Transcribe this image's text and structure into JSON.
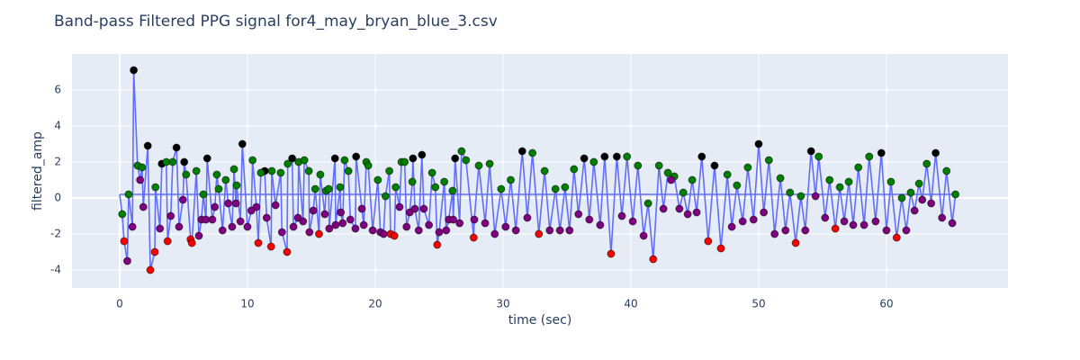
{
  "chart_data": {
    "type": "line",
    "title": "Band-pass Filtered PPG signal for4_may_bryan_blue_3.csv",
    "xlabel": "time (sec)",
    "ylabel": "filtered_amp",
    "xlim": [
      -3.73,
      69.51
    ],
    "ylim": [
      -5,
      8
    ],
    "xticks": [
      0,
      10,
      20,
      30,
      40,
      50,
      60
    ],
    "yticks": [
      -4,
      -2,
      0,
      2,
      4,
      6
    ],
    "grid": true,
    "series": [
      {
        "mode": "lines",
        "color": "#636efa",
        "x": [
          0,
          0.2,
          0.35,
          0.6,
          0.7,
          1.0,
          1.1,
          1.4,
          1.6,
          1.75,
          1.85,
          2.2,
          2.4,
          2.75,
          2.8,
          3.15,
          3.3,
          3.65,
          3.75,
          4.0,
          4.15,
          4.45,
          4.65,
          4.95,
          5.05,
          5.2,
          5.55,
          5.65,
          6.0,
          6.2,
          6.4,
          6.55,
          6.75,
          6.85,
          7.25,
          7.45,
          7.6,
          7.75,
          8.05,
          8.3,
          8.5,
          8.8,
          8.95,
          9.1,
          9.15,
          9.45,
          9.6,
          10.0,
          10.3,
          10.4,
          10.7,
          10.85,
          11.05,
          11.35,
          11.5,
          11.85,
          11.9,
          12.2,
          12.6,
          12.7,
          13.1,
          13.15,
          13.5,
          13.6,
          13.95,
          14.0,
          14.35,
          14.45,
          14.8,
          14.85,
          15.15,
          15.3,
          15.6,
          15.7,
          16.05,
          16.15,
          16.35,
          16.4,
          16.85,
          16.9,
          17.25,
          17.3,
          17.45,
          17.6,
          17.9,
          18.05,
          18.45,
          18.5,
          18.95,
          19.1,
          19.3,
          19.45,
          19.8,
          20.2,
          20.4,
          20.65,
          20.8,
          21.1,
          21.2,
          21.5,
          21.6,
          21.9,
          22.05,
          22.3,
          22.45,
          22.7,
          22.9,
          22.95,
          23.1,
          23.4,
          23.65,
          23.8,
          24.2,
          24.45,
          24.7,
          24.85,
          25.0,
          25.4,
          25.55,
          25.75,
          26.05,
          26.1,
          26.25,
          26.6,
          26.75,
          27.1,
          27.7,
          27.75,
          28.1,
          28.6,
          28.95,
          29.35,
          29.85,
          30.2,
          30.6,
          31.0,
          31.5,
          31.9,
          32.3,
          32.8,
          33.25,
          33.65,
          34.1,
          34.45,
          34.85,
          35.2,
          35.55,
          35.9,
          36.35,
          36.75,
          37.1,
          37.6,
          37.95,
          38.45,
          38.9,
          39.3,
          39.7,
          40.15,
          40.55,
          41.0,
          41.35,
          41.75,
          42.2,
          42.55,
          42.9,
          43.15,
          43.4,
          43.8,
          44.1,
          44.45,
          44.8,
          45.15,
          45.55,
          46.05,
          46.55,
          47.05,
          47.55,
          47.9,
          48.3,
          48.75,
          49.15,
          49.6,
          50.0,
          50.4,
          50.8,
          51.25,
          51.7,
          52.1,
          52.45,
          52.9,
          53.3,
          53.65,
          54.1,
          54.45,
          54.7,
          55.2,
          55.55,
          56.0,
          56.35,
          56.7,
          57.05,
          57.4,
          57.8,
          58.25,
          58.65,
          59.15,
          59.6,
          60.0,
          60.35,
          60.8,
          61.2,
          61.55,
          61.9,
          62.2,
          62.55,
          62.8,
          63.15,
          63.5,
          63.85,
          64.35,
          64.7,
          65.15,
          65.4,
          0
        ],
        "values": [
          0.2,
          -0.9,
          -2.4,
          -3.5,
          0.2,
          -1.6,
          7.1,
          1.8,
          1.0,
          1.7,
          -0.5,
          2.9,
          -4.0,
          -3.0,
          0.6,
          -1.7,
          1.9,
          2.0,
          -2.4,
          -1.0,
          2.0,
          2.8,
          -1.6,
          -0.1,
          2.0,
          1.3,
          -2.3,
          -2.5,
          1.5,
          -2.1,
          -1.2,
          0.2,
          -1.2,
          2.2,
          -1.2,
          -0.5,
          1.3,
          0.5,
          -1.8,
          1.0,
          -0.3,
          -1.6,
          1.6,
          -0.3,
          0.7,
          -1.3,
          3.0,
          -1.6,
          -0.7,
          2.1,
          -0.5,
          -2.5,
          1.4,
          1.5,
          -1.1,
          -2.7,
          1.5,
          -0.4,
          1.4,
          -1.9,
          -3.0,
          1.9,
          2.2,
          -1.6,
          -1.1,
          2.0,
          -1.3,
          2.1,
          1.5,
          -1.9,
          -0.7,
          0.5,
          -2.0,
          1.3,
          -0.9,
          0.4,
          0.5,
          -1.7,
          2.2,
          -1.5,
          0.6,
          -0.8,
          -1.4,
          2.1,
          1.5,
          -1.2,
          -1.7,
          2.3,
          -0.6,
          -1.5,
          2.0,
          1.8,
          -1.8,
          1.0,
          -1.9,
          -2.0,
          0.1,
          1.5,
          -2.0,
          -2.1,
          0.6,
          -0.5,
          2.0,
          2.0,
          -1.6,
          -0.8,
          0.9,
          2.2,
          -0.6,
          -1.8,
          2.4,
          -0.6,
          -1.5,
          1.4,
          0.6,
          -2.6,
          -1.9,
          0.9,
          -1.8,
          -1.2,
          0.4,
          -1.2,
          2.2,
          -1.4,
          2.6,
          2.1,
          -2.2,
          -1.2,
          1.8,
          -1.4,
          1.9,
          -2.0,
          0.5,
          -1.6,
          1.0,
          -1.8,
          2.6,
          -1.1,
          2.5,
          -2.0,
          1.5,
          -1.8,
          0.5,
          -1.8,
          0.6,
          -1.8,
          1.6,
          -0.9,
          2.2,
          -1.2,
          2.0,
          -1.5,
          2.3,
          -3.1,
          2.3,
          -1.0,
          2.3,
          -1.3,
          1.8,
          -2.1,
          -0.3,
          -3.4,
          1.8,
          -0.6,
          1.4,
          1.0,
          1.2,
          -0.6,
          0.3,
          -0.9,
          1.0,
          -0.8,
          2.3,
          -2.4,
          1.8,
          -2.8,
          1.3,
          -1.6,
          0.7,
          -1.3,
          1.7,
          -1.2,
          3.0,
          -0.8,
          2.1,
          -2.0,
          1.1,
          -1.8,
          0.3,
          -2.5,
          0.1,
          -1.8,
          2.6,
          0.1,
          2.3,
          -1.1,
          1.0,
          -1.7,
          0.6,
          -1.3,
          0.9,
          -1.5,
          1.7,
          -1.5,
          2.3,
          -1.3,
          2.5,
          -1.8,
          0.9,
          -2.2,
          0.0,
          -1.8,
          0.3,
          -0.7,
          0.8,
          -0.1,
          1.9,
          -0.3,
          2.5,
          -1.1,
          1.5,
          -1.4,
          0.2,
          0.2
        ]
      },
      {
        "mode": "markers",
        "color": "black",
        "x": [
          1.1,
          2.2,
          3.3,
          4.45,
          5.05,
          6.85,
          9.6,
          11.35,
          13.5,
          16.85,
          18.5,
          22.95,
          23.65,
          26.25,
          31.5,
          36.35,
          37.95,
          38.9,
          45.55,
          46.55,
          50.0,
          54.1,
          59.6,
          63.85
        ],
        "values": [
          7.1,
          2.9,
          1.9,
          2.8,
          2.0,
          2.2,
          3.0,
          1.5,
          2.2,
          2.2,
          2.3,
          2.2,
          2.4,
          2.2,
          2.6,
          2.2,
          2.3,
          2.3,
          2.3,
          1.8,
          3.0,
          2.6,
          2.5,
          2.5
        ]
      },
      {
        "mode": "markers",
        "color": "green",
        "x": [
          0.2,
          0.7,
          1.4,
          1.75,
          2.8,
          3.65,
          4.15,
          5.2,
          6.0,
          6.55,
          7.6,
          7.75,
          8.3,
          8.95,
          9.15,
          10.4,
          11.05,
          11.9,
          12.6,
          13.15,
          14.0,
          14.45,
          14.8,
          15.3,
          15.7,
          16.15,
          16.35,
          17.25,
          17.6,
          17.9,
          19.3,
          19.45,
          20.2,
          20.8,
          21.1,
          21.6,
          22.05,
          22.3,
          22.9,
          24.45,
          24.7,
          25.4,
          26.05,
          26.75,
          27.1,
          28.1,
          28.95,
          29.85,
          30.6,
          32.3,
          33.25,
          34.1,
          34.85,
          35.55,
          37.1,
          39.7,
          40.55,
          41.35,
          42.2,
          42.9,
          43.4,
          44.1,
          44.8,
          47.55,
          48.3,
          49.15,
          50.8,
          51.7,
          52.45,
          53.3,
          54.7,
          55.55,
          56.35,
          57.05,
          57.8,
          58.65,
          60.35,
          61.2,
          61.9,
          62.55,
          63.15,
          64.7,
          65.4
        ],
        "values": [
          -0.9,
          0.2,
          1.8,
          1.7,
          0.6,
          2.0,
          2.0,
          1.3,
          1.5,
          0.2,
          1.3,
          0.5,
          1.0,
          1.6,
          0.7,
          2.1,
          1.4,
          1.5,
          1.4,
          1.9,
          2.0,
          2.1,
          1.5,
          0.5,
          1.3,
          0.4,
          0.5,
          0.6,
          2.1,
          1.5,
          2.0,
          1.8,
          1.0,
          0.1,
          1.5,
          0.6,
          2.0,
          2.0,
          0.9,
          1.4,
          0.6,
          0.9,
          0.4,
          2.6,
          2.1,
          1.8,
          1.9,
          0.5,
          1.0,
          2.5,
          1.5,
          0.5,
          0.6,
          1.6,
          2.0,
          2.3,
          1.8,
          -0.3,
          1.8,
          1.4,
          1.2,
          0.3,
          1.0,
          1.3,
          0.7,
          1.7,
          2.1,
          1.1,
          0.3,
          0.1,
          2.3,
          1.0,
          0.6,
          0.9,
          1.7,
          2.3,
          0.9,
          0.0,
          0.3,
          0.8,
          1.9,
          1.5,
          0.2
        ]
      },
      {
        "mode": "markers",
        "color": "purple",
        "x": [
          0.6,
          1.0,
          1.6,
          1.85,
          3.15,
          4.0,
          4.65,
          4.95,
          6.2,
          6.4,
          6.75,
          7.25,
          7.45,
          8.05,
          8.5,
          8.8,
          9.1,
          9.45,
          10.0,
          10.3,
          10.7,
          11.5,
          12.2,
          12.7,
          13.6,
          13.95,
          14.35,
          14.85,
          15.15,
          16.05,
          16.4,
          16.9,
          17.3,
          17.45,
          18.05,
          18.45,
          18.95,
          19.1,
          19.8,
          20.4,
          20.65,
          21.9,
          22.45,
          22.7,
          23.1,
          23.4,
          23.8,
          24.2,
          25.0,
          25.55,
          25.75,
          26.1,
          26.6,
          27.75,
          28.6,
          29.35,
          30.2,
          31.0,
          31.9,
          33.65,
          34.45,
          35.2,
          35.9,
          36.75,
          37.6,
          39.3,
          40.15,
          41.0,
          42.55,
          43.15,
          43.8,
          44.45,
          45.15,
          47.9,
          48.75,
          49.6,
          50.4,
          51.25,
          52.1,
          53.65,
          54.45,
          55.2,
          56.7,
          57.4,
          58.25,
          59.15,
          60.0,
          61.55,
          62.2,
          62.8,
          63.5,
          64.35,
          65.15
        ],
        "values": [
          -3.5,
          -1.6,
          1.0,
          -0.5,
          -1.7,
          -1.0,
          -1.6,
          -0.1,
          -2.1,
          -1.2,
          -1.2,
          -1.2,
          -0.5,
          -1.8,
          -0.3,
          -1.6,
          -0.3,
          -1.3,
          -1.6,
          -0.7,
          -0.5,
          -1.1,
          -0.4,
          -1.9,
          -1.6,
          -1.1,
          -1.3,
          -1.9,
          -0.7,
          -0.9,
          -1.7,
          -1.5,
          -0.8,
          -1.4,
          -1.2,
          -1.7,
          -0.6,
          -1.5,
          -1.8,
          -1.9,
          -2.0,
          -0.5,
          -1.6,
          -0.8,
          -0.6,
          -1.8,
          -0.6,
          -1.5,
          -1.9,
          -1.8,
          -1.2,
          -1.2,
          -1.4,
          -1.2,
          -1.4,
          -2.0,
          -1.6,
          -1.8,
          -1.1,
          -1.8,
          -1.8,
          -1.8,
          -0.9,
          -1.2,
          -1.5,
          -1.0,
          -1.3,
          -2.1,
          -0.6,
          1.0,
          -0.6,
          -0.9,
          -0.8,
          -1.6,
          -1.3,
          -1.2,
          -0.8,
          -2.0,
          -1.8,
          -1.8,
          0.1,
          -1.1,
          -1.3,
          -1.5,
          -1.5,
          -1.3,
          -1.8,
          -1.8,
          -0.7,
          -0.1,
          -0.3,
          -1.1,
          -1.4
        ]
      },
      {
        "mode": "markers",
        "color": "red",
        "x": [
          0.35,
          2.4,
          2.75,
          3.75,
          5.55,
          5.65,
          10.85,
          11.85,
          13.1,
          15.6,
          21.2,
          21.5,
          24.85,
          27.7,
          32.8,
          38.45,
          41.75,
          46.05,
          47.05,
          52.9,
          56.0,
          60.8
        ],
        "values": [
          -2.4,
          -4.0,
          -3.0,
          -2.4,
          -2.3,
          -2.5,
          -2.5,
          -2.7,
          -3.0,
          -2.0,
          -2.0,
          -2.1,
          -2.6,
          -2.2,
          -2.0,
          -3.1,
          -3.4,
          -2.4,
          -2.8,
          -2.5,
          -1.7,
          -2.2
        ]
      }
    ]
  }
}
